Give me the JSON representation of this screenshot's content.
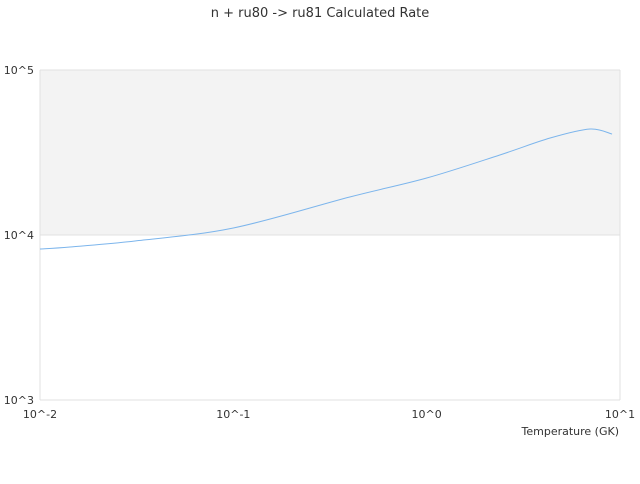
{
  "chart_data": {
    "type": "line",
    "title": "n + ru80 -> ru81 Calculated Rate",
    "xlabel": "Temperature (GK)",
    "ylabel": "",
    "x_scale": "log",
    "y_scale": "log",
    "xlim": [
      0.01,
      10
    ],
    "ylim": [
      1000,
      100000
    ],
    "x_ticks": [
      {
        "v": 0.01,
        "label": "10^-2"
      },
      {
        "v": 0.1,
        "label": "10^-1"
      },
      {
        "v": 1,
        "label": "10^0"
      },
      {
        "v": 10,
        "label": "10^1"
      }
    ],
    "y_ticks": [
      {
        "v": 1000,
        "label": "10^3"
      },
      {
        "v": 10000,
        "label": "10^4"
      },
      {
        "v": 100000,
        "label": "10^5"
      }
    ],
    "grid": true,
    "colors": {
      "series": "#7cb5ec",
      "band": "#f3f3f3",
      "grid": "#e0e0e0"
    },
    "series": [
      {
        "x": [
          0.01,
          0.0143,
          0.031,
          0.1,
          0.4,
          1.0,
          2.39,
          4.35,
          7.0,
          9.1
        ],
        "y": [
          8220,
          8460,
          9200,
          11030,
          17000,
          22150,
          30550,
          38700,
          43900,
          40900
        ]
      }
    ]
  }
}
